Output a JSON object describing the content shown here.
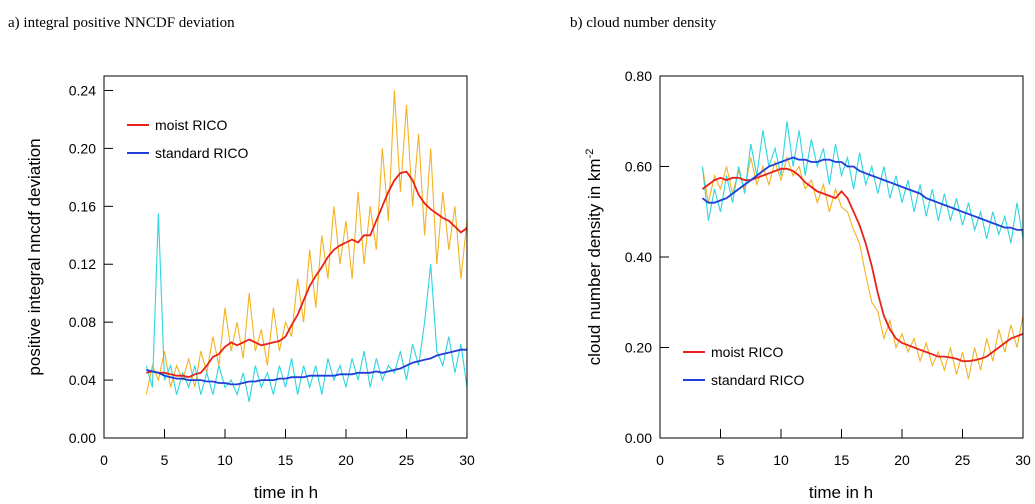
{
  "chart_data": [
    {
      "type": "line",
      "title": "a) integral positive NNCDF deviation",
      "xlabel": "time in h",
      "ylabel": "positive integral nncdf deviation",
      "x": [
        3.5,
        4,
        4.5,
        5,
        5.5,
        6,
        6.5,
        7,
        7.5,
        8,
        8.5,
        9,
        9.5,
        10,
        10.5,
        11,
        11.5,
        12,
        12.5,
        13,
        13.5,
        14,
        14.5,
        15,
        15.5,
        16,
        16.5,
        17,
        17.5,
        18,
        18.5,
        19,
        19.5,
        20,
        20.5,
        21,
        21.5,
        22,
        22.5,
        23,
        23.5,
        24,
        24.5,
        25,
        25.5,
        26,
        26.5,
        27,
        27.5,
        28,
        28.5,
        29,
        29.5,
        30
      ],
      "xlim": [
        0,
        30
      ],
      "xticks": [
        0,
        5,
        10,
        15,
        20,
        25,
        30
      ],
      "ylim": [
        0,
        0.25
      ],
      "yticks": [
        {
          "value": 0,
          "label": "0.00"
        },
        {
          "value": 0.04,
          "label": "0.04"
        },
        {
          "value": 0.08,
          "label": "0.08"
        },
        {
          "value": 0.12,
          "label": "0.12"
        },
        {
          "value": 0.16,
          "label": "0.16"
        },
        {
          "value": 0.2,
          "label": "0.20"
        },
        {
          "value": 0.24,
          "label": "0.24"
        }
      ],
      "legend": "upper left",
      "series": [
        {
          "color": "#f5b220",
          "values": [
            0.03,
            0.05,
            0.04,
            0.06,
            0.035,
            0.05,
            0.04,
            0.055,
            0.035,
            0.06,
            0.045,
            0.07,
            0.05,
            0.09,
            0.06,
            0.08,
            0.055,
            0.1,
            0.06,
            0.075,
            0.05,
            0.09,
            0.06,
            0.08,
            0.07,
            0.11,
            0.08,
            0.13,
            0.09,
            0.14,
            0.11,
            0.16,
            0.12,
            0.15,
            0.11,
            0.17,
            0.12,
            0.16,
            0.13,
            0.2,
            0.15,
            0.24,
            0.17,
            0.23,
            0.16,
            0.21,
            0.14,
            0.2,
            0.12,
            0.17,
            0.13,
            0.16,
            0.11,
            0.15
          ]
        },
        {
          "color": "#2dd5e0",
          "values": [
            0.05,
            0.035,
            0.155,
            0.04,
            0.05,
            0.03,
            0.045,
            0.035,
            0.05,
            0.03,
            0.045,
            0.03,
            0.05,
            0.035,
            0.04,
            0.03,
            0.045,
            0.025,
            0.05,
            0.035,
            0.045,
            0.03,
            0.05,
            0.035,
            0.055,
            0.03,
            0.05,
            0.035,
            0.05,
            0.03,
            0.055,
            0.04,
            0.05,
            0.035,
            0.055,
            0.04,
            0.06,
            0.035,
            0.055,
            0.04,
            0.05,
            0.045,
            0.06,
            0.04,
            0.065,
            0.05,
            0.08,
            0.12,
            0.06,
            0.05,
            0.07,
            0.045,
            0.065,
            0.035
          ]
        },
        {
          "name": "moist RICO",
          "color": "#e8221b",
          "values": [
            0.045,
            0.046,
            0.045,
            0.045,
            0.044,
            0.043,
            0.043,
            0.042,
            0.044,
            0.045,
            0.05,
            0.056,
            0.058,
            0.063,
            0.066,
            0.064,
            0.066,
            0.068,
            0.066,
            0.064,
            0.065,
            0.066,
            0.067,
            0.07,
            0.078,
            0.085,
            0.095,
            0.105,
            0.112,
            0.118,
            0.125,
            0.13,
            0.133,
            0.135,
            0.137,
            0.135,
            0.14,
            0.14,
            0.15,
            0.16,
            0.17,
            0.178,
            0.183,
            0.184,
            0.178,
            0.168,
            0.162,
            0.158,
            0.155,
            0.152,
            0.15,
            0.146,
            0.142,
            0.145
          ]
        },
        {
          "name": "standard RICO",
          "color": "#1f3fd6",
          "values": [
            0.047,
            0.046,
            0.045,
            0.043,
            0.042,
            0.041,
            0.041,
            0.04,
            0.04,
            0.04,
            0.039,
            0.039,
            0.038,
            0.038,
            0.037,
            0.037,
            0.038,
            0.039,
            0.039,
            0.04,
            0.04,
            0.04,
            0.041,
            0.041,
            0.042,
            0.042,
            0.042,
            0.043,
            0.043,
            0.043,
            0.043,
            0.043,
            0.044,
            0.044,
            0.044,
            0.045,
            0.045,
            0.045,
            0.046,
            0.045,
            0.046,
            0.047,
            0.048,
            0.05,
            0.052,
            0.053,
            0.054,
            0.055,
            0.057,
            0.058,
            0.059,
            0.06,
            0.061,
            0.061
          ]
        }
      ]
    },
    {
      "type": "line",
      "title": "b) cloud number density",
      "xlabel": "time in h",
      "ylabel": "cloud number density in km",
      "ylabel_sup": "-2",
      "x": [
        3.5,
        4,
        4.5,
        5,
        5.5,
        6,
        6.5,
        7,
        7.5,
        8,
        8.5,
        9,
        9.5,
        10,
        10.5,
        11,
        11.5,
        12,
        12.5,
        13,
        13.5,
        14,
        14.5,
        15,
        15.5,
        16,
        16.5,
        17,
        17.5,
        18,
        18.5,
        19,
        19.5,
        20,
        20.5,
        21,
        21.5,
        22,
        22.5,
        23,
        23.5,
        24,
        24.5,
        25,
        25.5,
        26,
        26.5,
        27,
        27.5,
        28,
        28.5,
        29,
        29.5,
        30
      ],
      "xlim": [
        0,
        30
      ],
      "xticks": [
        0,
        5,
        10,
        15,
        20,
        25,
        30
      ],
      "ylim": [
        0,
        0.8
      ],
      "yticks": [
        {
          "value": 0,
          "label": "0.00"
        },
        {
          "value": 0.2,
          "label": "0.20"
        },
        {
          "value": 0.4,
          "label": "0.40"
        },
        {
          "value": 0.6,
          "label": "0.60"
        },
        {
          "value": 0.8,
          "label": "0.80"
        }
      ],
      "legend": "lower left",
      "series": [
        {
          "color": "#f5b220",
          "values": [
            0.6,
            0.52,
            0.58,
            0.55,
            0.6,
            0.54,
            0.59,
            0.55,
            0.62,
            0.56,
            0.6,
            0.56,
            0.61,
            0.57,
            0.62,
            0.58,
            0.6,
            0.55,
            0.57,
            0.52,
            0.56,
            0.5,
            0.55,
            0.51,
            0.5,
            0.46,
            0.43,
            0.36,
            0.3,
            0.28,
            0.22,
            0.26,
            0.2,
            0.23,
            0.19,
            0.22,
            0.17,
            0.21,
            0.16,
            0.19,
            0.15,
            0.2,
            0.14,
            0.19,
            0.13,
            0.2,
            0.15,
            0.22,
            0.17,
            0.24,
            0.19,
            0.25,
            0.2,
            0.27
          ]
        },
        {
          "color": "#2dd5e0",
          "values": [
            0.6,
            0.48,
            0.55,
            0.5,
            0.58,
            0.52,
            0.6,
            0.54,
            0.65,
            0.58,
            0.68,
            0.6,
            0.64,
            0.58,
            0.7,
            0.6,
            0.68,
            0.58,
            0.66,
            0.6,
            0.64,
            0.56,
            0.65,
            0.58,
            0.62,
            0.55,
            0.63,
            0.56,
            0.6,
            0.54,
            0.6,
            0.53,
            0.58,
            0.52,
            0.57,
            0.5,
            0.56,
            0.49,
            0.55,
            0.48,
            0.54,
            0.48,
            0.53,
            0.47,
            0.52,
            0.46,
            0.5,
            0.44,
            0.5,
            0.45,
            0.49,
            0.43,
            0.52,
            0.44
          ]
        },
        {
          "name": "moist RICO",
          "color": "#e8221b",
          "values": [
            0.55,
            0.56,
            0.57,
            0.575,
            0.57,
            0.575,
            0.575,
            0.57,
            0.57,
            0.575,
            0.58,
            0.585,
            0.59,
            0.595,
            0.595,
            0.59,
            0.58,
            0.565,
            0.555,
            0.545,
            0.54,
            0.535,
            0.53,
            0.545,
            0.53,
            0.5,
            0.47,
            0.43,
            0.38,
            0.32,
            0.27,
            0.24,
            0.22,
            0.21,
            0.205,
            0.2,
            0.195,
            0.19,
            0.185,
            0.18,
            0.18,
            0.178,
            0.175,
            0.17,
            0.17,
            0.172,
            0.175,
            0.18,
            0.19,
            0.2,
            0.21,
            0.22,
            0.225,
            0.23
          ]
        },
        {
          "name": "standard RICO",
          "color": "#1f3fd6",
          "values": [
            0.53,
            0.52,
            0.52,
            0.525,
            0.53,
            0.54,
            0.55,
            0.56,
            0.57,
            0.58,
            0.59,
            0.6,
            0.605,
            0.61,
            0.615,
            0.62,
            0.615,
            0.615,
            0.61,
            0.61,
            0.615,
            0.615,
            0.61,
            0.61,
            0.6,
            0.6,
            0.59,
            0.585,
            0.58,
            0.575,
            0.57,
            0.565,
            0.56,
            0.555,
            0.55,
            0.545,
            0.54,
            0.53,
            0.525,
            0.52,
            0.515,
            0.51,
            0.505,
            0.5,
            0.495,
            0.49,
            0.485,
            0.48,
            0.475,
            0.47,
            0.465,
            0.465,
            0.46,
            0.46
          ]
        }
      ]
    }
  ]
}
